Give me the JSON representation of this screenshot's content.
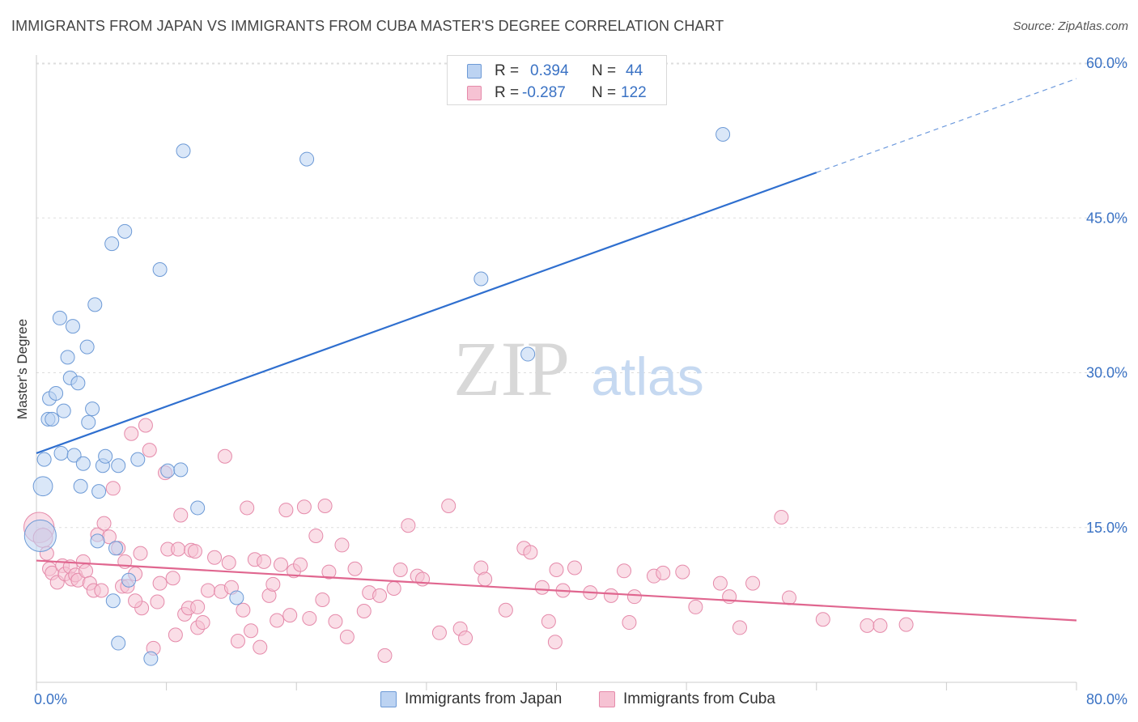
{
  "header": {
    "title": "IMMIGRANTS FROM JAPAN VS IMMIGRANTS FROM CUBA MASTER'S DEGREE CORRELATION CHART",
    "source": "Source: ZipAtlas.com"
  },
  "watermark": {
    "zip": "ZIP",
    "atlas": "atlas"
  },
  "stats": {
    "japan": {
      "r_label": "R =",
      "r_value": "0.394",
      "n_label": "N =",
      "n_value": "44"
    },
    "cuba": {
      "r_label": "R =",
      "r_value": "-0.287",
      "n_label": "N =",
      "n_value": "122"
    }
  },
  "colors": {
    "japan_fill": "#bcd3f2",
    "japan_stroke": "#6d9ad6",
    "japan_line": "#2f6fcf",
    "cuba_fill": "#f6c2d3",
    "cuba_stroke": "#e58aaa",
    "cuba_line": "#e0668f",
    "tick_label": "#3a72c4",
    "grid": "#dddddd"
  },
  "chart_data": {
    "type": "scatter",
    "title": "IMMIGRANTS FROM JAPAN VS IMMIGRANTS FROM CUBA MASTER'S DEGREE CORRELATION CHART",
    "xlabel": "",
    "ylabel": "Master's Degree",
    "xlim": [
      0,
      80
    ],
    "ylim": [
      0,
      60
    ],
    "x_tick_labels": [
      "0.0%",
      "80.0%"
    ],
    "y_ticks": [
      15,
      30,
      45,
      60
    ],
    "y_tick_labels": [
      "15.0%",
      "30.0%",
      "45.0%",
      "60.0%"
    ],
    "legend_position": "bottom",
    "series": [
      {
        "name": "Immigrants from Japan",
        "r": 0.394,
        "n": 44,
        "trend": {
          "x0": 0,
          "y0": 22.2,
          "x1": 60,
          "y1": 49.4,
          "dash_to_x": 80,
          "dash_to_y": 58.5
        },
        "points": [
          [
            0.3,
            14.2,
            2.3
          ],
          [
            0.5,
            19.0,
            1.4
          ],
          [
            0.6,
            21.6,
            1.0
          ],
          [
            0.9,
            25.5,
            1.0
          ],
          [
            1.0,
            27.5,
            1.0
          ],
          [
            1.2,
            25.5,
            1.0
          ],
          [
            1.5,
            28.0,
            1.0
          ],
          [
            1.8,
            35.3,
            1.0
          ],
          [
            1.9,
            22.2,
            1.0
          ],
          [
            2.1,
            26.3,
            1.0
          ],
          [
            2.4,
            31.5,
            1.0
          ],
          [
            2.6,
            29.5,
            1.0
          ],
          [
            2.8,
            34.5,
            1.0
          ],
          [
            2.9,
            22.0,
            1.0
          ],
          [
            3.2,
            29.0,
            1.0
          ],
          [
            3.4,
            19.0,
            1.0
          ],
          [
            3.6,
            21.2,
            1.0
          ],
          [
            3.9,
            32.5,
            1.0
          ],
          [
            4.0,
            25.2,
            1.0
          ],
          [
            4.3,
            26.5,
            1.0
          ],
          [
            4.5,
            36.6,
            1.0
          ],
          [
            4.8,
            18.5,
            1.0
          ],
          [
            4.7,
            13.7,
            1.0
          ],
          [
            5.1,
            21.0,
            1.0
          ],
          [
            5.3,
            21.9,
            1.0
          ],
          [
            5.8,
            42.5,
            1.0
          ],
          [
            5.9,
            7.9,
            1.0
          ],
          [
            6.1,
            13.0,
            1.0
          ],
          [
            6.3,
            3.8,
            1.0
          ],
          [
            6.3,
            21.0,
            1.0
          ],
          [
            6.8,
            43.7,
            1.0
          ],
          [
            7.1,
            9.9,
            1.0
          ],
          [
            7.8,
            21.6,
            1.0
          ],
          [
            8.8,
            2.3,
            1.0
          ],
          [
            9.5,
            40.0,
            1.0
          ],
          [
            10.1,
            20.5,
            1.0
          ],
          [
            11.1,
            20.6,
            1.0
          ],
          [
            11.3,
            51.5,
            1.0
          ],
          [
            12.4,
            16.9,
            1.0
          ],
          [
            15.4,
            8.2,
            1.0
          ],
          [
            20.8,
            50.7,
            1.0
          ],
          [
            34.2,
            39.1,
            1.0
          ],
          [
            37.8,
            31.8,
            1.0
          ],
          [
            52.8,
            53.1,
            1.0
          ]
        ]
      },
      {
        "name": "Immigrants from Cuba",
        "r": -0.287,
        "n": 122,
        "trend": {
          "x0": 0,
          "y0": 11.8,
          "x1": 80,
          "y1": 6.0
        },
        "points": [
          [
            0.2,
            15.0,
            2.2
          ],
          [
            0.5,
            14.0,
            1.4
          ],
          [
            0.8,
            12.5,
            1.0
          ],
          [
            1.0,
            11.0,
            1.0
          ],
          [
            1.2,
            10.6,
            1.0
          ],
          [
            1.6,
            9.7,
            1.0
          ],
          [
            2.0,
            11.3,
            1.0
          ],
          [
            2.2,
            10.5,
            1.0
          ],
          [
            2.6,
            11.2,
            1.0
          ],
          [
            2.7,
            10.0,
            1.0
          ],
          [
            3.0,
            10.4,
            1.0
          ],
          [
            3.2,
            9.9,
            1.0
          ],
          [
            3.6,
            11.7,
            1.0
          ],
          [
            3.8,
            10.8,
            1.0
          ],
          [
            4.1,
            9.6,
            1.0
          ],
          [
            4.4,
            8.9,
            1.0
          ],
          [
            4.7,
            14.3,
            1.0
          ],
          [
            5.0,
            8.9,
            1.0
          ],
          [
            5.2,
            15.4,
            1.0
          ],
          [
            5.6,
            14.1,
            1.0
          ],
          [
            5.9,
            18.8,
            1.0
          ],
          [
            6.3,
            13.0,
            1.0
          ],
          [
            6.6,
            9.3,
            1.0
          ],
          [
            6.8,
            11.7,
            1.0
          ],
          [
            7.0,
            9.3,
            1.0
          ],
          [
            7.3,
            24.1,
            1.0
          ],
          [
            7.6,
            10.5,
            1.0
          ],
          [
            8.0,
            12.5,
            1.0
          ],
          [
            8.1,
            7.2,
            1.0
          ],
          [
            8.4,
            24.9,
            1.0
          ],
          [
            8.7,
            22.5,
            1.0
          ],
          [
            9.0,
            3.3,
            1.0
          ],
          [
            9.3,
            7.8,
            1.0
          ],
          [
            9.5,
            9.6,
            1.0
          ],
          [
            9.9,
            20.3,
            1.0
          ],
          [
            10.1,
            12.9,
            1.0
          ],
          [
            10.5,
            10.1,
            1.0
          ],
          [
            10.7,
            4.6,
            1.0
          ],
          [
            10.9,
            12.9,
            1.0
          ],
          [
            11.1,
            16.2,
            1.0
          ],
          [
            11.4,
            6.6,
            1.0
          ],
          [
            11.7,
            7.2,
            1.0
          ],
          [
            11.9,
            12.8,
            1.0
          ],
          [
            12.2,
            12.7,
            1.0
          ],
          [
            12.4,
            5.3,
            1.0
          ],
          [
            12.8,
            5.8,
            1.0
          ],
          [
            13.2,
            8.9,
            1.0
          ],
          [
            13.7,
            12.1,
            1.0
          ],
          [
            14.2,
            8.8,
            1.0
          ],
          [
            14.5,
            21.9,
            1.0
          ],
          [
            14.8,
            11.6,
            1.0
          ],
          [
            15.0,
            9.2,
            1.0
          ],
          [
            15.5,
            4.0,
            1.0
          ],
          [
            15.9,
            7.0,
            1.0
          ],
          [
            16.2,
            16.9,
            1.0
          ],
          [
            16.5,
            5.0,
            1.0
          ],
          [
            16.8,
            11.9,
            1.0
          ],
          [
            17.2,
            3.4,
            1.0
          ],
          [
            17.5,
            11.7,
            1.0
          ],
          [
            17.9,
            8.4,
            1.0
          ],
          [
            18.2,
            9.5,
            1.0
          ],
          [
            18.5,
            6.0,
            1.0
          ],
          [
            18.8,
            11.4,
            1.0
          ],
          [
            19.2,
            16.7,
            1.0
          ],
          [
            19.5,
            6.5,
            1.0
          ],
          [
            19.8,
            10.8,
            1.0
          ],
          [
            20.3,
            11.4,
            1.0
          ],
          [
            20.6,
            17.0,
            1.0
          ],
          [
            21.0,
            6.2,
            1.0
          ],
          [
            21.5,
            14.2,
            1.0
          ],
          [
            22.0,
            8.0,
            1.0
          ],
          [
            22.2,
            17.1,
            1.0
          ],
          [
            22.5,
            10.7,
            1.0
          ],
          [
            23.0,
            5.9,
            1.0
          ],
          [
            23.5,
            13.3,
            1.0
          ],
          [
            23.9,
            4.4,
            1.0
          ],
          [
            24.5,
            11.0,
            1.0
          ],
          [
            25.2,
            6.9,
            1.0
          ],
          [
            25.6,
            8.7,
            1.0
          ],
          [
            26.4,
            8.4,
            1.0
          ],
          [
            26.8,
            2.6,
            1.0
          ],
          [
            27.5,
            9.1,
            1.0
          ],
          [
            28.0,
            10.9,
            1.0
          ],
          [
            28.6,
            15.2,
            1.0
          ],
          [
            29.3,
            10.3,
            1.0
          ],
          [
            29.7,
            10.0,
            1.0
          ],
          [
            31.0,
            4.8,
            1.0
          ],
          [
            31.7,
            17.1,
            1.0
          ],
          [
            32.6,
            5.2,
            1.0
          ],
          [
            33.0,
            4.3,
            1.0
          ],
          [
            34.2,
            11.1,
            1.0
          ],
          [
            34.5,
            10.0,
            1.0
          ],
          [
            36.1,
            7.0,
            1.0
          ],
          [
            37.5,
            13.0,
            1.0
          ],
          [
            38.0,
            12.6,
            1.0
          ],
          [
            38.9,
            9.2,
            1.0
          ],
          [
            39.4,
            5.9,
            1.0
          ],
          [
            40.0,
            10.9,
            1.0
          ],
          [
            40.5,
            8.9,
            1.0
          ],
          [
            41.4,
            11.1,
            1.0
          ],
          [
            42.6,
            8.7,
            1.0
          ],
          [
            44.2,
            8.4,
            1.0
          ],
          [
            45.2,
            10.8,
            1.0
          ],
          [
            45.6,
            5.8,
            1.0
          ],
          [
            46.0,
            8.3,
            1.0
          ],
          [
            47.5,
            10.3,
            1.0
          ],
          [
            48.2,
            10.6,
            1.0
          ],
          [
            49.7,
            10.7,
            1.0
          ],
          [
            50.7,
            7.3,
            1.0
          ],
          [
            52.6,
            9.6,
            1.0
          ],
          [
            53.3,
            8.3,
            1.0
          ],
          [
            54.1,
            5.3,
            1.0
          ],
          [
            55.1,
            9.6,
            1.0
          ],
          [
            57.3,
            16.0,
            1.0
          ],
          [
            57.9,
            8.2,
            1.0
          ],
          [
            60.5,
            6.1,
            1.0
          ],
          [
            63.9,
            5.5,
            1.0
          ],
          [
            64.9,
            5.5,
            1.0
          ],
          [
            66.9,
            5.6,
            1.0
          ],
          [
            39.9,
            3.9,
            1.0
          ],
          [
            7.6,
            7.9,
            1.0
          ],
          [
            12.4,
            7.3,
            1.0
          ]
        ]
      }
    ]
  }
}
